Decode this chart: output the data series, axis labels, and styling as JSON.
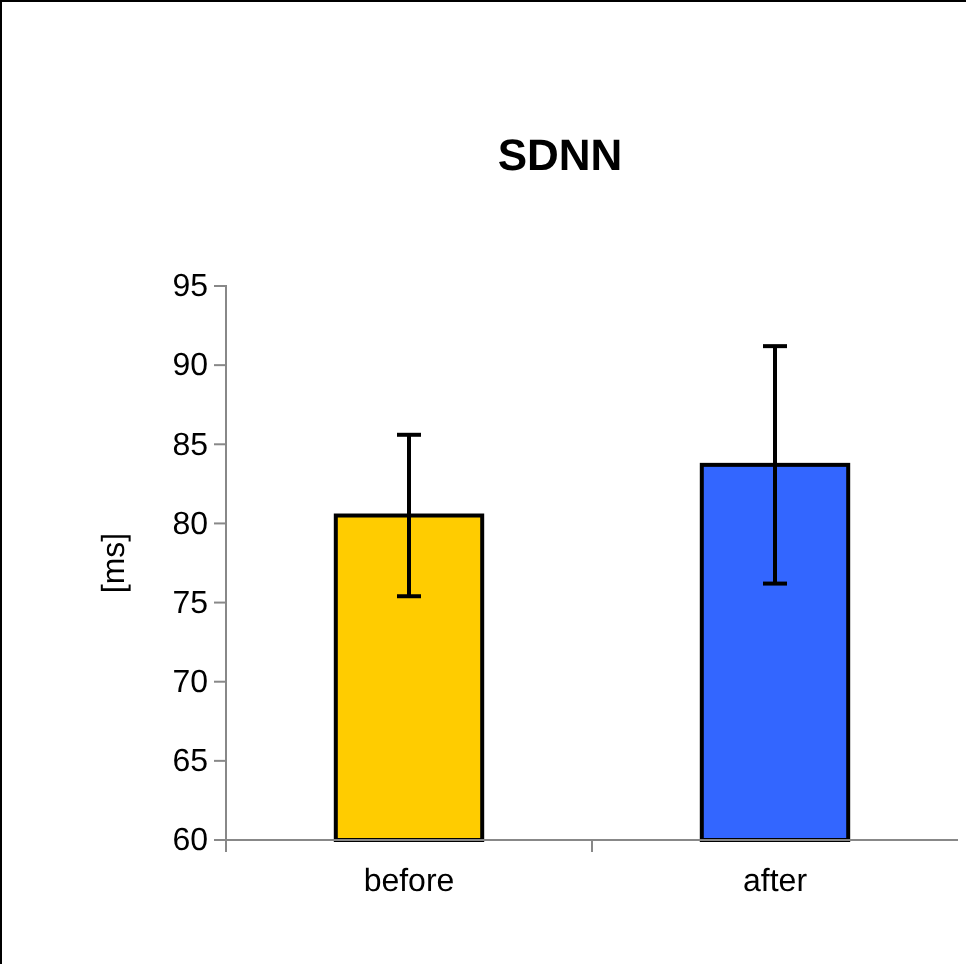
{
  "chart_data": {
    "type": "bar",
    "title": "SDNN",
    "ylabel": "[ms]",
    "categories": [
      "before",
      "after"
    ],
    "values": [
      80.5,
      83.7
    ],
    "colors": [
      "#ffcc00",
      "#3366ff"
    ],
    "errors": [
      [
        75.4,
        85.6
      ],
      [
        76.2,
        91.2
      ]
    ],
    "ylim": [
      60,
      95
    ],
    "yticks": [
      60,
      65,
      70,
      75,
      80,
      85,
      90,
      95
    ],
    "grid": false
  }
}
